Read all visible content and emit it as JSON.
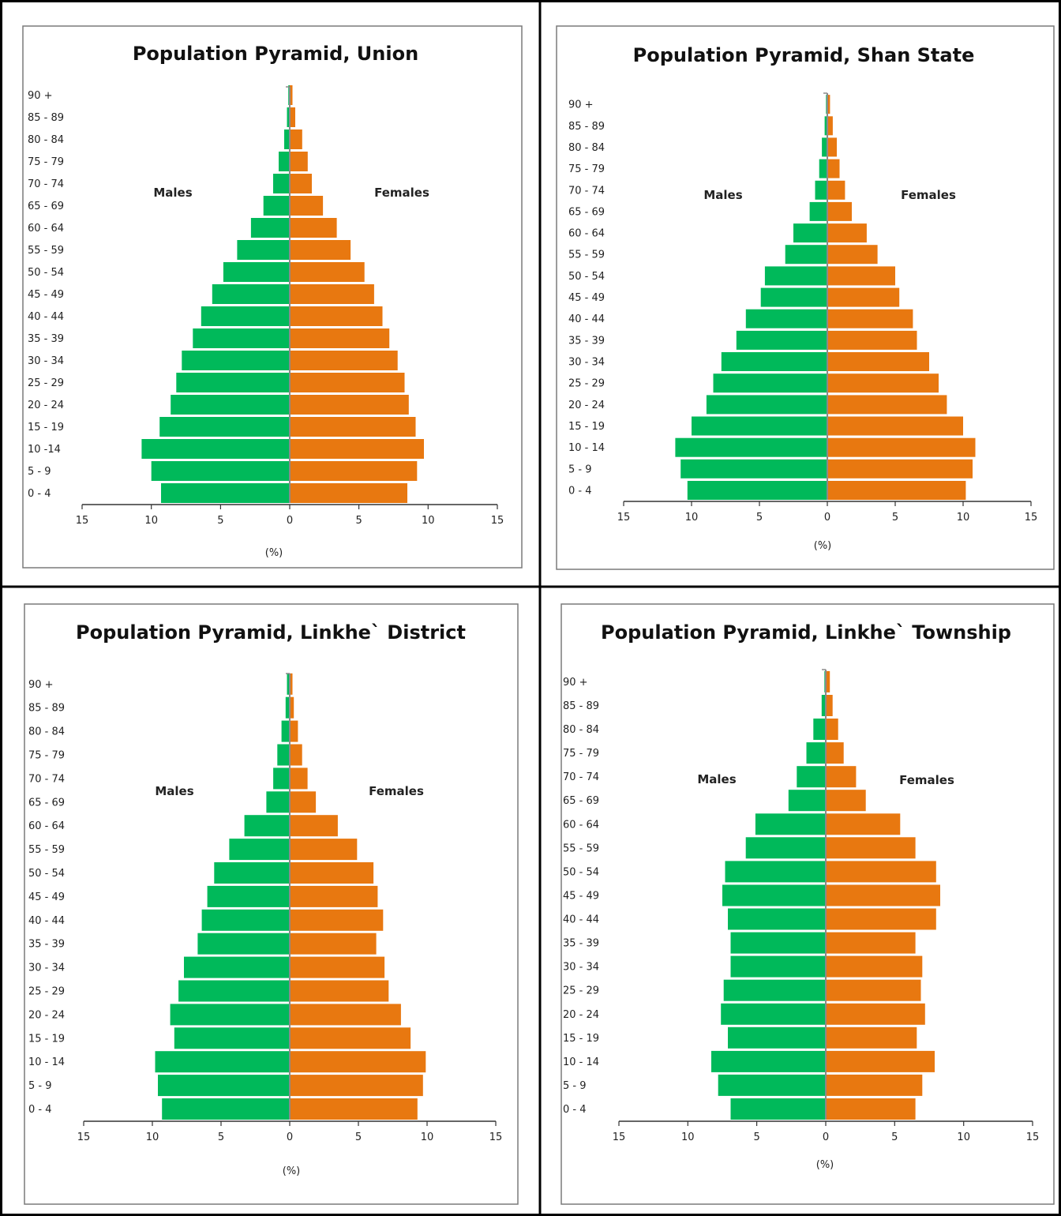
{
  "colors": {
    "males": "#00b95a",
    "females": "#e87810",
    "frame": "#000000",
    "panel_border": "#7a7a7a"
  },
  "chart_data": [
    {
      "type": "bar",
      "orientation": "horizontal-pyramid",
      "title": "Population Pyramid, Union",
      "xlabel": "(%)",
      "label_males": "Males",
      "label_females": "Females",
      "categories": [
        "0 -  4",
        "5 -  9",
        "10 -14",
        "15 - 19",
        "20 - 24",
        "25 - 29",
        "30 - 34",
        "35 - 39",
        "40 - 44",
        "45 - 49",
        "50 - 54",
        "55 - 59",
        "60 - 64",
        "65 - 69",
        "70 - 74",
        "75 - 79",
        "80 - 84",
        "85 - 89",
        "90 +"
      ],
      "xticks": [
        "15",
        "10",
        "5",
        "0",
        "5",
        "10",
        "15"
      ],
      "xlim": [
        -15,
        15
      ],
      "series": [
        {
          "name": "Males",
          "values": [
            9.3,
            10.0,
            10.7,
            9.4,
            8.6,
            8.2,
            7.8,
            7.0,
            6.4,
            5.6,
            4.8,
            3.8,
            2.8,
            1.9,
            1.2,
            0.8,
            0.4,
            0.2,
            0.1
          ]
        },
        {
          "name": "Females",
          "values": [
            8.5,
            9.2,
            9.7,
            9.1,
            8.6,
            8.3,
            7.8,
            7.2,
            6.7,
            6.1,
            5.4,
            4.4,
            3.4,
            2.4,
            1.6,
            1.3,
            0.9,
            0.4,
            0.2
          ]
        }
      ]
    },
    {
      "type": "bar",
      "orientation": "horizontal-pyramid",
      "title": "Population Pyramid, Shan State",
      "xlabel": "(%)",
      "label_males": "Males",
      "label_females": "Females",
      "categories": [
        "0 - 4",
        "5 - 9",
        "10 - 14",
        "15 - 19",
        "20 - 24",
        "25 - 29",
        "30 - 34",
        "35 - 39",
        "40 - 44",
        "45 - 49",
        "50 - 54",
        "55 - 59",
        "60 - 64",
        "65 - 69",
        "70 - 74",
        "75 - 79",
        "80 - 84",
        "85 - 89",
        "90 +"
      ],
      "xticks": [
        "15",
        "10",
        "5",
        "0",
        "5",
        "10",
        "15"
      ],
      "xlim": [
        -15,
        15
      ],
      "series": [
        {
          "name": "Males",
          "values": [
            10.3,
            10.8,
            11.2,
            10.0,
            8.9,
            8.4,
            7.8,
            6.7,
            6.0,
            4.9,
            4.6,
            3.1,
            2.5,
            1.3,
            0.9,
            0.6,
            0.4,
            0.2,
            0.1
          ]
        },
        {
          "name": "Females",
          "values": [
            10.2,
            10.7,
            10.9,
            10.0,
            8.8,
            8.2,
            7.5,
            6.6,
            6.3,
            5.3,
            5.0,
            3.7,
            2.9,
            1.8,
            1.3,
            0.9,
            0.7,
            0.4,
            0.2
          ]
        }
      ]
    },
    {
      "type": "bar",
      "orientation": "horizontal-pyramid",
      "title": "Population Pyramid, Linkhe` District",
      "xlabel": "(%)",
      "label_males": "Males",
      "label_females": "Females",
      "categories": [
        "0 - 4",
        "5 - 9",
        "10 - 14",
        "15 - 19",
        "20 - 24",
        "25 - 29",
        "30 - 34",
        "35 - 39",
        "40 - 44",
        "45 - 49",
        "50 - 54",
        "55 - 59",
        "60 - 64",
        "65 - 69",
        "70 - 74",
        "75 - 79",
        "80 - 84",
        "85 - 89",
        "90 +"
      ],
      "xticks": [
        "15",
        "10",
        "5",
        "0",
        "5",
        "10",
        "15"
      ],
      "xlim": [
        -15,
        15
      ],
      "series": [
        {
          "name": "Males",
          "values": [
            9.3,
            9.6,
            9.8,
            8.4,
            8.7,
            8.1,
            7.7,
            6.7,
            6.4,
            6.0,
            5.5,
            4.4,
            3.3,
            1.7,
            1.2,
            0.9,
            0.6,
            0.3,
            0.2
          ]
        },
        {
          "name": "Females",
          "values": [
            9.3,
            9.7,
            9.9,
            8.8,
            8.1,
            7.2,
            6.9,
            6.3,
            6.8,
            6.4,
            6.1,
            4.9,
            3.5,
            1.9,
            1.3,
            0.9,
            0.6,
            0.3,
            0.2
          ]
        }
      ]
    },
    {
      "type": "bar",
      "orientation": "horizontal-pyramid",
      "title": "Population Pyramid,  Linkhe` Township",
      "xlabel": "(%)",
      "label_males": "Males",
      "label_females": "Females",
      "categories": [
        "0 - 4",
        "5 - 9",
        "10 - 14",
        "15 - 19",
        "20 - 24",
        "25 - 29",
        "30 - 34",
        "35 - 39",
        "40 - 44",
        "45 - 49",
        "50 - 54",
        "55 - 59",
        "60 - 64",
        "65 - 69",
        "70 - 74",
        "75 - 79",
        "80 - 84",
        "85 - 89",
        "90 +"
      ],
      "xticks": [
        "15",
        "10",
        "5",
        "0",
        "5",
        "10",
        "15"
      ],
      "xlim": [
        -15,
        15
      ],
      "series": [
        {
          "name": "Males",
          "values": [
            6.9,
            7.8,
            8.3,
            7.1,
            7.6,
            7.4,
            6.9,
            6.9,
            7.1,
            7.5,
            7.3,
            5.8,
            5.1,
            2.7,
            2.1,
            1.4,
            0.9,
            0.3,
            0.1
          ]
        },
        {
          "name": "Females",
          "values": [
            6.5,
            7.0,
            7.9,
            6.6,
            7.2,
            6.9,
            7.0,
            6.5,
            8.0,
            8.3,
            8.0,
            6.5,
            5.4,
            2.9,
            2.2,
            1.3,
            0.9,
            0.5,
            0.3
          ]
        }
      ]
    }
  ]
}
